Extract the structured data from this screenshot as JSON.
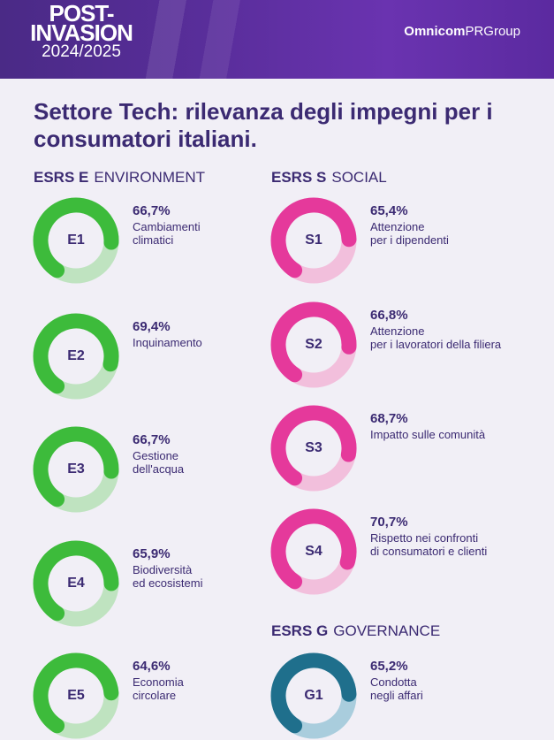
{
  "header": {
    "logo_line1": "POST-",
    "logo_line2": "INVASION",
    "logo_line3": "2024/2025",
    "brand_bold": "Omnicom",
    "brand_rest": "PRGroup"
  },
  "title": "Settore Tech: rilevanza degli impegni per i consumatori italiani.",
  "sections": {
    "environment": {
      "code": "ESRS E",
      "name": "ENVIRONMENT"
    },
    "social": {
      "code": "ESRS S",
      "name": "SOCIAL"
    },
    "governance": {
      "code": "ESRS G",
      "name": "GOVERNANCE"
    }
  },
  "colors": {
    "environment": "#3dbb3b",
    "environment_track": "#bfe3c0",
    "social": "#e5399b",
    "social_track": "#f2bfdc",
    "governance": "#1f6f8c",
    "governance_track": "#a9cddd"
  },
  "chart_data": {
    "type": "donut",
    "items": [
      {
        "id": "E1",
        "group": "environment",
        "value": 66.7,
        "pct": "66,7%",
        "label": "Cambiamenti\nclimatici"
      },
      {
        "id": "E2",
        "group": "environment",
        "value": 69.4,
        "pct": "69,4%",
        "label": "Inquinamento"
      },
      {
        "id": "E3",
        "group": "environment",
        "value": 66.7,
        "pct": "66,7%",
        "label": "Gestione\ndell'acqua"
      },
      {
        "id": "E4",
        "group": "environment",
        "value": 65.9,
        "pct": "65,9%",
        "label": "Biodiversità\ned ecosistemi"
      },
      {
        "id": "E5",
        "group": "environment",
        "value": 64.6,
        "pct": "64,6%",
        "label": "Economia\ncircolare"
      },
      {
        "id": "S1",
        "group": "social",
        "value": 65.4,
        "pct": "65,4%",
        "label": "Attenzione\nper i dipendenti"
      },
      {
        "id": "S2",
        "group": "social",
        "value": 66.8,
        "pct": "66,8%",
        "label": "Attenzione\nper i lavoratori della filiera"
      },
      {
        "id": "S3",
        "group": "social",
        "value": 68.7,
        "pct": "68,7%",
        "label": "Impatto sulle comunità"
      },
      {
        "id": "S4",
        "group": "social",
        "value": 70.7,
        "pct": "70,7%",
        "label": "Rispetto nei confronti\ndi consumatori e clienti"
      },
      {
        "id": "G1",
        "group": "governance",
        "value": 65.2,
        "pct": "65,2%",
        "label": "Condotta\nnegli affari"
      }
    ]
  }
}
